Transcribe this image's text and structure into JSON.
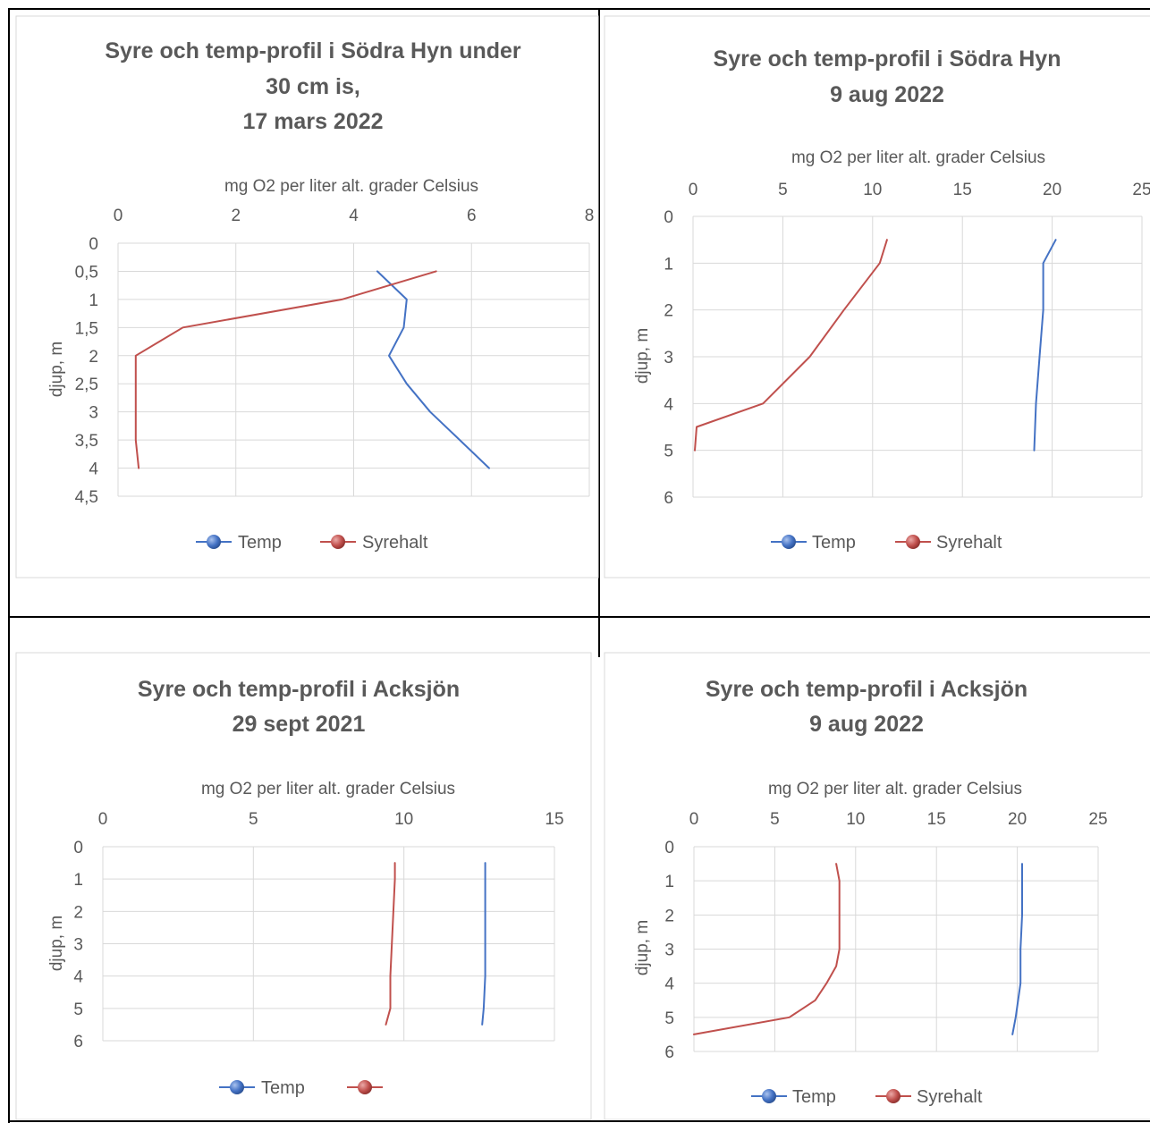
{
  "colors": {
    "temp": "#4472c4",
    "syrehalt": "#c0504d",
    "grid": "#d9d9d9",
    "text": "#595959",
    "frame": "#000000"
  },
  "chart_data": [
    {
      "type": "line",
      "title_lines": [
        "Syre och temp-profil i Södra Hyn under",
        "30 cm is,",
        "17 mars 2022"
      ],
      "xlabel": "mg O2 per liter alt. grader Celsius",
      "ylabel": "djup, m",
      "x_axis_position": "top",
      "y_axis_inverted": true,
      "xlim": [
        0,
        8
      ],
      "x_ticks": [
        0,
        2,
        4,
        6,
        8
      ],
      "x_tick_labels": [
        "0",
        "2",
        "4",
        "6",
        "8"
      ],
      "ylim": [
        0,
        4.5
      ],
      "y_ticks": [
        0,
        0.5,
        1,
        1.5,
        2,
        2.5,
        3,
        3.5,
        4,
        4.5
      ],
      "y_tick_labels": [
        "0",
        "0,5",
        "1",
        "1,5",
        "2",
        "2,5",
        "3",
        "3,5",
        "4",
        "4,5"
      ],
      "grid": true,
      "legend_position": "bottom",
      "series": [
        {
          "name": "Temp",
          "x": [
            4.4,
            4.9,
            4.85,
            4.6,
            4.9,
            5.3,
            5.8,
            6.3
          ],
          "y": [
            0.5,
            1,
            1.5,
            2,
            2.5,
            3,
            3.5,
            4
          ]
        },
        {
          "name": "Syrehalt",
          "x": [
            5.4,
            3.8,
            1.1,
            0.3,
            0.3,
            0.3,
            0.3,
            0.35
          ],
          "y": [
            0.5,
            1,
            1.5,
            2,
            2.5,
            3,
            3.5,
            4
          ]
        }
      ]
    },
    {
      "type": "line",
      "title_lines": [
        "Syre och temp-profil i Södra Hyn",
        "9 aug 2022"
      ],
      "xlabel": "mg O2 per liter alt. grader Celsius",
      "ylabel": "djup, m",
      "x_axis_position": "top",
      "y_axis_inverted": true,
      "xlim": [
        0,
        25
      ],
      "x_ticks": [
        0,
        5,
        10,
        15,
        20,
        25
      ],
      "x_tick_labels": [
        "0",
        "5",
        "10",
        "15",
        "20",
        "25"
      ],
      "ylim": [
        0,
        6
      ],
      "y_ticks": [
        0,
        1,
        2,
        3,
        4,
        5,
        6
      ],
      "y_tick_labels": [
        "0",
        "1",
        "2",
        "3",
        "4",
        "5",
        "6"
      ],
      "grid": true,
      "legend_position": "bottom",
      "series": [
        {
          "name": "Temp",
          "x": [
            20.2,
            19.5,
            19.5,
            19.3,
            19.1,
            19
          ],
          "y": [
            0.5,
            1,
            2,
            3,
            4,
            5
          ]
        },
        {
          "name": "Syrehalt",
          "x": [
            10.8,
            10.4,
            8.4,
            6.5,
            3.9,
            0.2,
            0.1
          ],
          "y": [
            0.5,
            1,
            2,
            3,
            4,
            4.5,
            5
          ]
        }
      ]
    },
    {
      "type": "line",
      "title_lines": [
        "Syre och temp-profil i Acksjön",
        "29 sept 2021"
      ],
      "xlabel": "mg O2 per liter alt. grader Celsius",
      "ylabel": "djup, m",
      "x_axis_position": "top",
      "y_axis_inverted": true,
      "xlim": [
        0,
        15
      ],
      "x_ticks": [
        0,
        5,
        10,
        15
      ],
      "x_tick_labels": [
        "0",
        "5",
        "10",
        "15"
      ],
      "ylim": [
        0,
        6
      ],
      "y_ticks": [
        0,
        1,
        2,
        3,
        4,
        5,
        6
      ],
      "y_tick_labels": [
        "0",
        "1",
        "2",
        "3",
        "4",
        "5",
        "6"
      ],
      "grid": true,
      "legend_position": "bottom",
      "series": [
        {
          "name": "Temp",
          "x": [
            12.7,
            12.7,
            12.7,
            12.7,
            12.7,
            12.65,
            12.6
          ],
          "y": [
            0.5,
            1,
            2,
            3,
            4,
            5,
            5.5
          ]
        },
        {
          "name": "",
          "x": [
            9.7,
            9.7,
            9.65,
            9.6,
            9.55,
            9.55,
            9.4
          ],
          "y": [
            0.5,
            1,
            2,
            3,
            4,
            5,
            5.5
          ]
        }
      ]
    },
    {
      "type": "line",
      "title_lines": [
        "Syre och temp-profil i Acksjön",
        "9 aug 2022"
      ],
      "xlabel": "mg O2 per liter alt. grader Celsius",
      "ylabel": "djup, m",
      "x_axis_position": "top",
      "y_axis_inverted": true,
      "xlim": [
        0,
        25
      ],
      "x_ticks": [
        0,
        5,
        10,
        15,
        20,
        25
      ],
      "x_tick_labels": [
        "0",
        "5",
        "10",
        "15",
        "20",
        "25"
      ],
      "ylim": [
        0,
        6
      ],
      "y_ticks": [
        0,
        1,
        2,
        3,
        4,
        5,
        6
      ],
      "y_tick_labels": [
        "0",
        "1",
        "2",
        "3",
        "4",
        "5",
        "6"
      ],
      "grid": true,
      "legend_position": "bottom",
      "series": [
        {
          "name": "Temp",
          "x": [
            20.3,
            20.3,
            20.3,
            20.2,
            20.2,
            19.9,
            19.7
          ],
          "y": [
            0.5,
            1,
            2,
            3,
            4,
            5,
            5.5
          ]
        },
        {
          "name": "Syrehalt",
          "x": [
            8.8,
            9,
            9,
            9,
            8.8,
            8.2,
            7.5,
            5.9,
            0
          ],
          "y": [
            0.5,
            1,
            2,
            3,
            3.5,
            4,
            4.5,
            5,
            5.5
          ]
        }
      ]
    }
  ],
  "legend_labels": [
    [
      "Temp",
      "Syrehalt"
    ],
    [
      "Temp",
      "Syrehalt"
    ],
    [
      "Temp",
      ""
    ],
    [
      "Temp",
      "Syrehalt"
    ]
  ]
}
